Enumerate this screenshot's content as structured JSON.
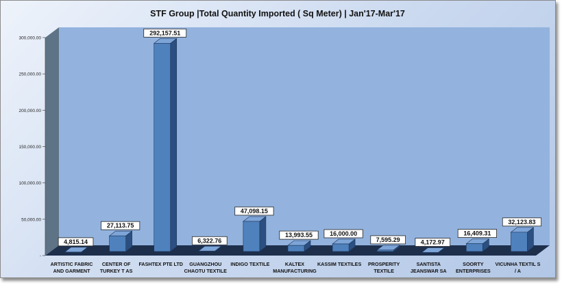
{
  "colors": {
    "bar_front": "#4f81bd",
    "bar_side": "#2b4f80",
    "bar_top": "#7ea5d8",
    "back_wall": "#93b3de",
    "side_wall": "#5e7386",
    "floor": "#1e2f4c",
    "label_bg": "#ffffff"
  },
  "chart_data": {
    "type": "bar",
    "title": "STF Group |Total Quantity Imported ( Sq Meter) | Jan'17-Mar'17",
    "xlabel": "",
    "ylabel": "",
    "ylim": [
      0,
      300000
    ],
    "yticks": [
      0,
      50000,
      100000,
      150000,
      200000,
      250000,
      300000
    ],
    "ytick_labels": [
      "-",
      "50,000.00",
      "100,000.00",
      "150,000.00",
      "200,000.00",
      "250,000.00",
      "300,000.00"
    ],
    "grid": false,
    "legend": "none",
    "style": "3d-column",
    "categories": [
      [
        "ARTISTIC FABRIC",
        "AND GARMENT"
      ],
      [
        "CENTER OF",
        "TURKEY  T AS"
      ],
      [
        "FASHTEX PTE LTD"
      ],
      [
        "GUANGZHOU",
        "CHAOTU TEXTILE"
      ],
      [
        "INDIGO TEXTILE"
      ],
      [
        "KALTEX",
        "MANUFACTURING"
      ],
      [
        "KASSIM TEXTILES"
      ],
      [
        "PROSPERITY",
        "TEXTILE"
      ],
      [
        "SANTISTA",
        "JEANSWAR SA"
      ],
      [
        "SOORTY",
        "ENTERPRISES"
      ],
      [
        "VICUNHA TEXTIL S",
        "/ A"
      ]
    ],
    "values": [
      4815.14,
      27113.75,
      292157.51,
      6322.76,
      47098.15,
      13993.55,
      16000.0,
      7595.29,
      4172.97,
      16409.31,
      32123.83
    ],
    "data_labels": [
      "4,815.14",
      "27,113.75",
      "292,157.51",
      "6,322.76",
      "47,098.15",
      "13,993.55",
      "16,000.00",
      "7,595.29",
      "4,172.97",
      "16,409.31",
      "32,123.83"
    ]
  }
}
